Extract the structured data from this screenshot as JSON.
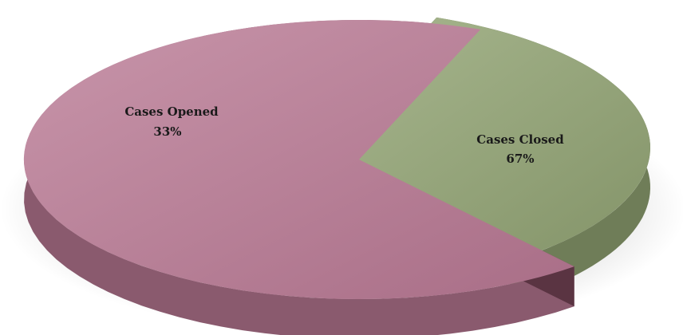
{
  "chart_data": {
    "type": "pie",
    "style": "3d-exploded",
    "title": "",
    "legend": false,
    "slices": [
      {
        "label": "Cases Opened",
        "value": 33,
        "display": "33%",
        "color": "#94a47a",
        "side_color": "#6f7d58"
      },
      {
        "label": "Cases Closed",
        "value": 67,
        "display": "67%",
        "color": "#b87e96",
        "side_color": "#8a5a6e"
      }
    ]
  }
}
